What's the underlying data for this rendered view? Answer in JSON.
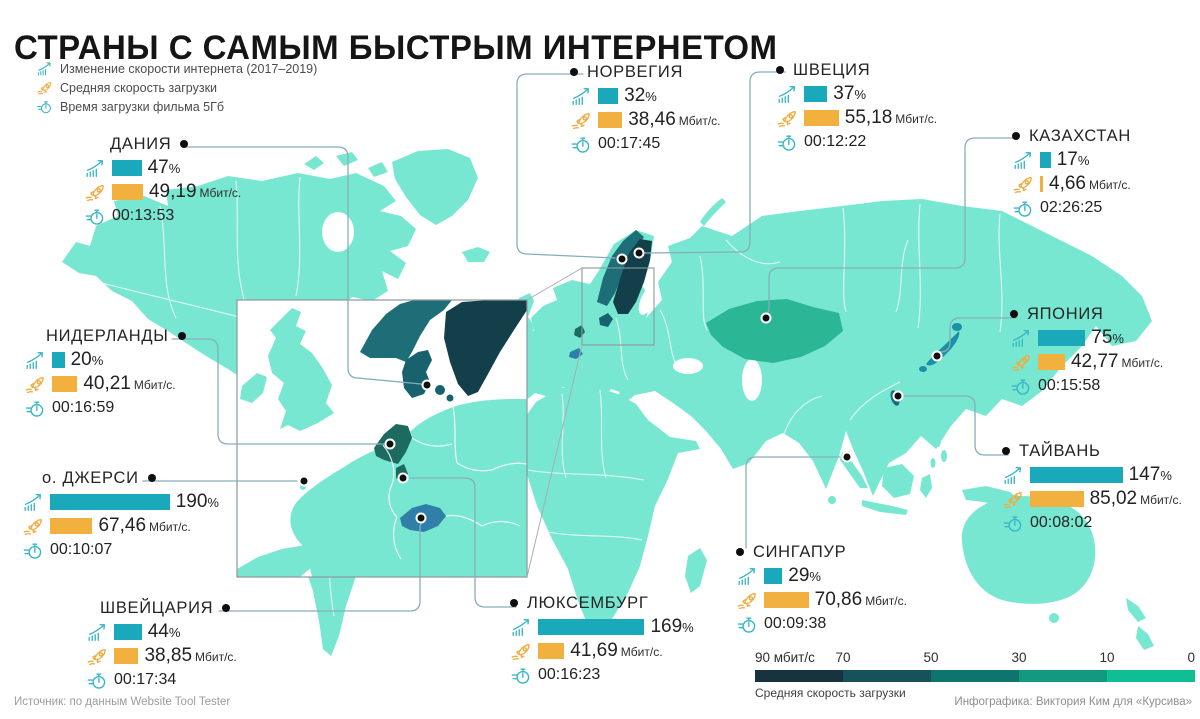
{
  "title": "СТРАНЫ С САМЫМ БЫСТРЫМ ИНТЕРНЕТОМ",
  "legend": {
    "items": [
      {
        "icon": "growth-icon",
        "label": "Изменение скорости интернета (2017–2019)"
      },
      {
        "icon": "rocket-icon",
        "label": "Средняя скорость загрузки"
      },
      {
        "icon": "stopwatch-icon",
        "label": "Время загрузки фильма 5Гб"
      }
    ]
  },
  "countries": [
    {
      "name": "НОРВЕГИЯ",
      "pct": 32,
      "pct_label": "32",
      "pct_unit": "%",
      "mbit": 38.46,
      "mbit_label": "38,46",
      "mbit_unit": "Мбит/с.",
      "time": "00:17:45"
    },
    {
      "name": "ШВЕЦИЯ",
      "pct": 37,
      "pct_label": "37",
      "pct_unit": "%",
      "mbit": 55.18,
      "mbit_label": "55,18",
      "mbit_unit": "Мбит/с.",
      "time": "00:12:22"
    },
    {
      "name": "КАЗАХСТАН",
      "pct": 17,
      "pct_label": "17",
      "pct_unit": "%",
      "mbit": 4.66,
      "mbit_label": "4,66",
      "mbit_unit": "Мбит/с.",
      "time": "02:26:25"
    },
    {
      "name": "ДАНИЯ",
      "pct": 47,
      "pct_label": "47",
      "pct_unit": "%",
      "mbit": 49.19,
      "mbit_label": "49,19",
      "mbit_unit": "Мбит/с.",
      "time": "00:13:53"
    },
    {
      "name": "ЯПОНИЯ",
      "pct": 75,
      "pct_label": "75",
      "pct_unit": "%",
      "mbit": 42.77,
      "mbit_label": "42,77",
      "mbit_unit": "Мбит/с.",
      "time": "00:15:58"
    },
    {
      "name": "НИДЕРЛАНДЫ",
      "pct": 20,
      "pct_label": "20",
      "pct_unit": "%",
      "mbit": 40.21,
      "mbit_label": "40,21",
      "mbit_unit": "Мбит/с.",
      "time": "00:16:59"
    },
    {
      "name": "ТАЙВАНЬ",
      "pct": 147,
      "pct_label": "147",
      "pct_unit": "%",
      "mbit": 85.02,
      "mbit_label": "85,02",
      "mbit_unit": "Мбит/с.",
      "time": "00:08:02"
    },
    {
      "name": "о. ДЖЕРСИ",
      "pct": 190,
      "pct_label": "190",
      "pct_unit": "%",
      "mbit": 67.46,
      "mbit_label": "67,46",
      "mbit_unit": "Мбит/с.",
      "time": "00:10:07"
    },
    {
      "name": "СИНГАПУР",
      "pct": 29,
      "pct_label": "29",
      "pct_unit": "%",
      "mbit": 70.86,
      "mbit_label": "70,86",
      "mbit_unit": "Мбит/с.",
      "time": "00:09:38"
    },
    {
      "name": "ШВЕЙЦАРИЯ",
      "pct": 44,
      "pct_label": "44",
      "pct_unit": "%",
      "mbit": 38.85,
      "mbit_label": "38,85",
      "mbit_unit": "Мбит/с.",
      "time": "00:17:34"
    },
    {
      "name": "ЛЮКСЕМБУРГ",
      "pct": 169,
      "pct_label": "169",
      "pct_unit": "%",
      "mbit": 41.69,
      "mbit_label": "41,69",
      "mbit_unit": "Мбит/с.",
      "time": "00:16:23"
    }
  ],
  "scale": {
    "ticks": [
      "90 мбит/с",
      "70",
      "50",
      "30",
      "10",
      "0"
    ],
    "label": "Средняя скорость загрузки",
    "colors": [
      "#17333d",
      "#15525c",
      "#0e756e",
      "#119a80",
      "#0fbe92"
    ]
  },
  "footer": {
    "source": "Источник: по данным Website Tool Tester",
    "credit": "Инфографика: Виктория Ким для «Курсива»"
  },
  "colors": {
    "bar_teal": "#1aa9bb",
    "bar_orange": "#f2b13e",
    "icon_teal": "#38b6c8",
    "icon_orange": "#f1ab40",
    "map_base": "#78e7d1",
    "map_kazakhstan": "#2bb795",
    "map_norway": "#1e6e78",
    "map_sweden": "#123f4a",
    "map_denmark": "#17626c",
    "map_netherlands": "#1d6b5e",
    "map_switzerland": "#2f7fa8",
    "map_japan": "#1c90a6",
    "map_taiwan": "#1c6e80",
    "connector_line": "#86aeba"
  }
}
